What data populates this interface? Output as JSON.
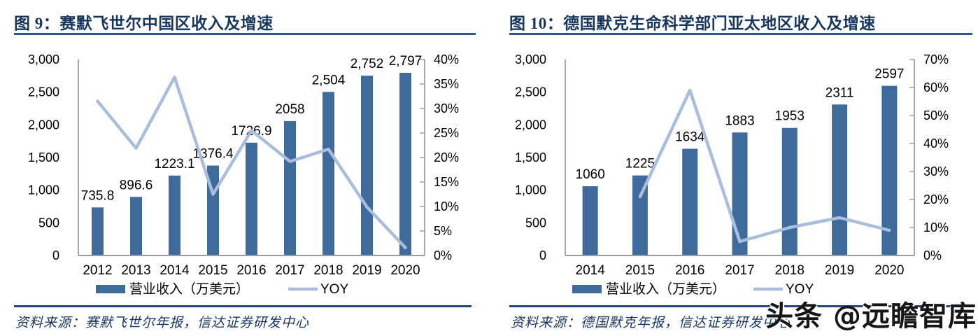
{
  "chart_data": [
    {
      "type": "bar+line",
      "title": "图 9：赛默飞世尔中国区收入及增速",
      "source": "资料来源：赛默飞世尔年报，信达证券研发中心",
      "categories": [
        "2012",
        "2013",
        "2014",
        "2015",
        "2016",
        "2017",
        "2018",
        "2019",
        "2020"
      ],
      "series": [
        {
          "name": "营业收入（万美元）",
          "type": "bar",
          "axis": "left",
          "values": [
            735.8,
            896.6,
            1223.1,
            1376.4,
            1726.9,
            2058,
            2504,
            2752,
            2797
          ],
          "labels": [
            "735.8",
            "896.6",
            "1223.1",
            "1376.4",
            "1726.9",
            "2058",
            "2,504",
            "2,752",
            "2,797"
          ]
        },
        {
          "name": "YOY",
          "type": "line",
          "axis": "right",
          "values": [
            31.5,
            21.9,
            36.4,
            12.5,
            25.5,
            19.2,
            21.7,
            9.9,
            1.6
          ]
        }
      ],
      "left_axis": {
        "min": 0,
        "max": 3000,
        "step": 500,
        "ticks": [
          "3,000",
          "2,500",
          "2,000",
          "1,500",
          "1,000",
          "500",
          "0"
        ]
      },
      "right_axis": {
        "min": 0,
        "max": 40,
        "step": 5,
        "unit": "%",
        "ticks": [
          "40%",
          "35%",
          "30%",
          "25%",
          "20%",
          "15%",
          "10%",
          "5%",
          "0%"
        ]
      },
      "legend": [
        "营业收入（万美元）",
        "YOY"
      ],
      "grid": false,
      "legend_position": "bottom"
    },
    {
      "type": "bar+line",
      "title": "图 10：德国默克生命科学部门亚太地区收入及增速",
      "source": "资料来源：德国默克年报，信达证券研发中心",
      "categories": [
        "2014",
        "2015",
        "2016",
        "2017",
        "2018",
        "2019",
        "2020"
      ],
      "series": [
        {
          "name": "营业收入（万美元）",
          "type": "bar",
          "axis": "left",
          "values": [
            1060,
            1225,
            1634,
            1883,
            1953,
            2311,
            2597
          ],
          "labels": [
            "1060",
            "1225",
            "1634",
            "1883",
            "1953",
            "2311",
            "2597"
          ]
        },
        {
          "name": "YOY",
          "type": "line",
          "axis": "right",
          "values": [
            null,
            21.0,
            59.0,
            5.0,
            10.0,
            13.5,
            9.0
          ]
        }
      ],
      "left_axis": {
        "min": 0,
        "max": 3000,
        "step": 500,
        "ticks": [
          "3,000",
          "2,500",
          "2,000",
          "1,500",
          "1,000",
          "500",
          "0"
        ]
      },
      "right_axis": {
        "min": 0,
        "max": 70,
        "step": 10,
        "unit": "%",
        "ticks": [
          "70%",
          "60%",
          "50%",
          "40%",
          "30%",
          "20%",
          "10%",
          "0%"
        ]
      },
      "legend": [
        "营业收入（万美元）",
        "YOY"
      ],
      "grid": false,
      "legend_position": "bottom"
    }
  ],
  "watermark": {
    "text": "头条 @远瞻智库"
  },
  "colors": {
    "bar": "#3E6A9C",
    "line": "#A9BDDC",
    "title": "#17365D",
    "title_rule": "#2E5597",
    "source_rule": "#24477B",
    "axis": "#9C9C9C",
    "text": "#000000",
    "source_text": "#17365D",
    "watermark": "#161616"
  }
}
